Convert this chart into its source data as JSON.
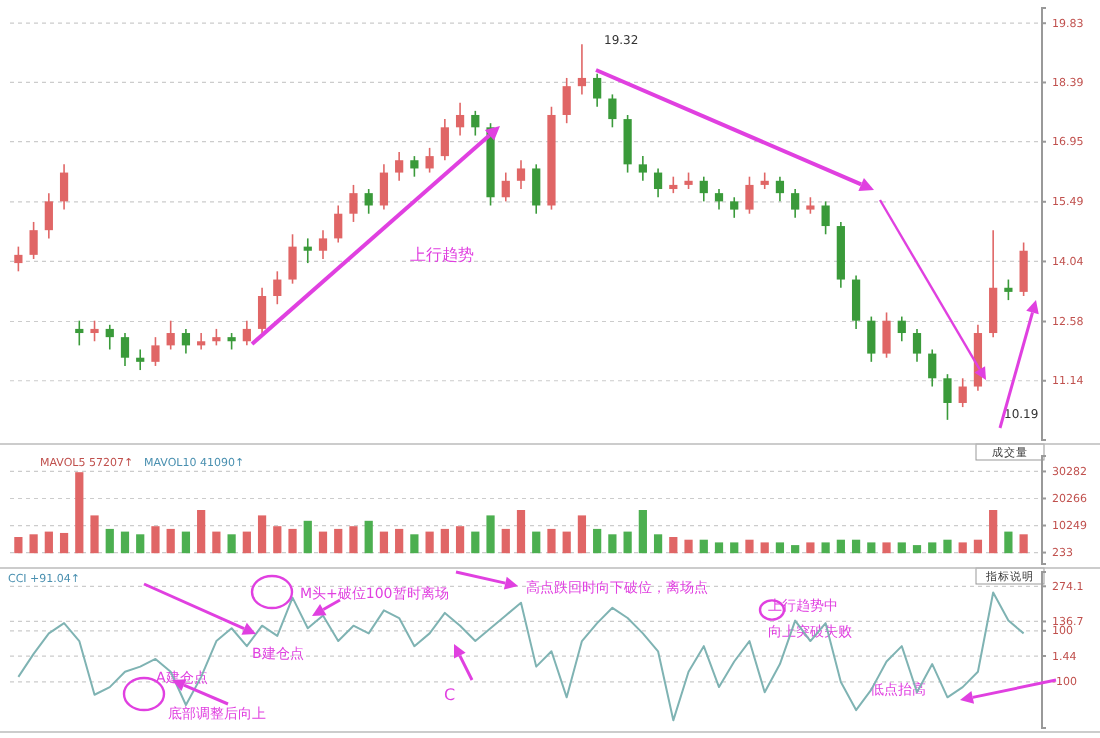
{
  "chart_data": [
    {
      "type": "candlestick",
      "categories": [
        null,
        null,
        null,
        null,
        null,
        null,
        null,
        null,
        null,
        null,
        null,
        null,
        null,
        null,
        null,
        null,
        null,
        null,
        null,
        null,
        null,
        null,
        null,
        null,
        null,
        null,
        null,
        null,
        null,
        null,
        null,
        null,
        null,
        null,
        null,
        null,
        null,
        null,
        null,
        null,
        null,
        null,
        null,
        null,
        null,
        null,
        null,
        null,
        null,
        null,
        null,
        null,
        null,
        null,
        null,
        null,
        null,
        null,
        null,
        null,
        null,
        null,
        null,
        null,
        null,
        null,
        null
      ],
      "ohlc": [
        [
          14.0,
          14.4,
          13.8,
          14.2
        ],
        [
          14.2,
          15.0,
          14.1,
          14.8
        ],
        [
          14.8,
          15.7,
          14.6,
          15.5
        ],
        [
          15.5,
          16.4,
          15.3,
          16.2
        ],
        [
          12.4,
          12.6,
          12.0,
          12.3
        ],
        [
          12.3,
          12.6,
          12.1,
          12.4
        ],
        [
          12.4,
          12.5,
          11.9,
          12.2
        ],
        [
          12.2,
          12.3,
          11.5,
          11.7
        ],
        [
          11.7,
          11.9,
          11.4,
          11.6
        ],
        [
          11.6,
          12.2,
          11.5,
          12.0
        ],
        [
          12.0,
          12.6,
          11.9,
          12.3
        ],
        [
          12.3,
          12.4,
          11.8,
          12.0
        ],
        [
          12.0,
          12.3,
          11.9,
          12.1
        ],
        [
          12.1,
          12.4,
          12.0,
          12.2
        ],
        [
          12.2,
          12.3,
          11.9,
          12.1
        ],
        [
          12.1,
          12.6,
          12.0,
          12.4
        ],
        [
          12.4,
          13.4,
          12.3,
          13.2
        ],
        [
          13.2,
          13.8,
          13.0,
          13.6
        ],
        [
          13.6,
          14.7,
          13.5,
          14.4
        ],
        [
          14.4,
          14.6,
          14.0,
          14.3
        ],
        [
          14.3,
          14.8,
          14.1,
          14.6
        ],
        [
          14.6,
          15.4,
          14.5,
          15.2
        ],
        [
          15.2,
          15.9,
          15.0,
          15.7
        ],
        [
          15.7,
          15.8,
          15.2,
          15.4
        ],
        [
          15.4,
          16.4,
          15.3,
          16.2
        ],
        [
          16.2,
          16.7,
          16.0,
          16.5
        ],
        [
          16.5,
          16.6,
          16.1,
          16.3
        ],
        [
          16.3,
          16.8,
          16.2,
          16.6
        ],
        [
          16.6,
          17.5,
          16.5,
          17.3
        ],
        [
          17.3,
          17.9,
          17.1,
          17.6
        ],
        [
          17.6,
          17.7,
          17.1,
          17.3
        ],
        [
          17.3,
          17.4,
          15.4,
          15.6
        ],
        [
          15.6,
          16.2,
          15.5,
          16.0
        ],
        [
          16.0,
          16.5,
          15.8,
          16.3
        ],
        [
          16.3,
          16.4,
          15.2,
          15.4
        ],
        [
          15.4,
          17.8,
          15.3,
          17.6
        ],
        [
          17.6,
          18.5,
          17.4,
          18.3
        ],
        [
          18.3,
          19.32,
          18.1,
          18.5
        ],
        [
          18.5,
          18.6,
          17.8,
          18.0
        ],
        [
          18.0,
          18.1,
          17.3,
          17.5
        ],
        [
          17.5,
          17.6,
          16.2,
          16.4
        ],
        [
          16.4,
          16.6,
          16.0,
          16.2
        ],
        [
          16.2,
          16.3,
          15.6,
          15.8
        ],
        [
          15.8,
          16.1,
          15.7,
          15.9
        ],
        [
          15.9,
          16.2,
          15.8,
          16.0
        ],
        [
          16.0,
          16.1,
          15.5,
          15.7
        ],
        [
          15.7,
          15.8,
          15.3,
          15.5
        ],
        [
          15.5,
          15.6,
          15.1,
          15.3
        ],
        [
          15.3,
          16.1,
          15.2,
          15.9
        ],
        [
          15.9,
          16.2,
          15.8,
          16.0
        ],
        [
          16.0,
          16.1,
          15.5,
          15.7
        ],
        [
          15.7,
          15.8,
          15.1,
          15.3
        ],
        [
          15.3,
          15.6,
          15.2,
          15.4
        ],
        [
          15.4,
          15.5,
          14.7,
          14.9
        ],
        [
          14.9,
          15.0,
          13.4,
          13.6
        ],
        [
          13.6,
          13.7,
          12.4,
          12.6
        ],
        [
          12.6,
          12.7,
          11.6,
          11.8
        ],
        [
          11.8,
          12.8,
          11.7,
          12.6
        ],
        [
          12.6,
          12.7,
          12.1,
          12.3
        ],
        [
          12.3,
          12.4,
          11.6,
          11.8
        ],
        [
          11.8,
          11.9,
          11.0,
          11.2
        ],
        [
          11.2,
          11.3,
          10.19,
          10.6
        ],
        [
          10.6,
          11.2,
          10.5,
          11.0
        ],
        [
          11.0,
          12.5,
          10.9,
          12.3
        ],
        [
          12.3,
          14.8,
          12.2,
          13.4
        ],
        [
          13.4,
          13.6,
          13.1,
          13.3
        ],
        [
          13.3,
          14.5,
          13.2,
          14.3
        ]
      ],
      "ylim": [
        9.7,
        20.2
      ],
      "yticks": [
        11.14,
        12.58,
        14.04,
        15.49,
        16.95,
        18.39,
        19.83
      ],
      "grid": "y",
      "annotations": [
        "上行趋势",
        "19.32",
        "10.19"
      ]
    },
    {
      "type": "bar",
      "categories": [
        null,
        null,
        null,
        null,
        null,
        null,
        null,
        null,
        null,
        null,
        null,
        null,
        null,
        null,
        null,
        null,
        null,
        null,
        null,
        null,
        null,
        null,
        null,
        null,
        null,
        null,
        null,
        null,
        null,
        null,
        null,
        null,
        null,
        null,
        null,
        null,
        null,
        null,
        null,
        null,
        null,
        null,
        null,
        null,
        null,
        null,
        null,
        null,
        null,
        null,
        null,
        null,
        null,
        null,
        null,
        null,
        null,
        null,
        null,
        null,
        null,
        null,
        null,
        null,
        null,
        null,
        null
      ],
      "values": [
        6000,
        7000,
        8000,
        7500,
        30000,
        14000,
        9000,
        8000,
        7000,
        10000,
        9000,
        8000,
        16000,
        8000,
        7000,
        8000,
        14000,
        10000,
        9000,
        12000,
        8000,
        9000,
        10000,
        12000,
        8000,
        9000,
        7000,
        8000,
        9000,
        10000,
        8000,
        14000,
        9000,
        16000,
        8000,
        9000,
        8000,
        14000,
        9000,
        7000,
        8000,
        16000,
        7000,
        6000,
        5000,
        5000,
        4000,
        4000,
        5000,
        4000,
        4000,
        3000,
        4000,
        4000,
        5000,
        5000,
        4000,
        4000,
        4000,
        3000,
        4000,
        5000,
        4000,
        5000,
        16000,
        8000,
        7000
      ],
      "colors": [
        "#e06666",
        "#e06666",
        "#e06666",
        "#e06666",
        "#e06666",
        "#e06666",
        "#4caf50",
        "#4caf50",
        "#4caf50",
        "#e06666",
        "#e06666",
        "#4caf50",
        "#e06666",
        "#e06666",
        "#4caf50",
        "#e06666",
        "#e06666",
        "#e06666",
        "#e06666",
        "#4caf50",
        "#e06666",
        "#e06666",
        "#e06666",
        "#4caf50",
        "#e06666",
        "#e06666",
        "#4caf50",
        "#e06666",
        "#e06666",
        "#e06666",
        "#4caf50",
        "#4caf50",
        "#e06666",
        "#e06666",
        "#4caf50",
        "#e06666",
        "#e06666",
        "#e06666",
        "#4caf50",
        "#4caf50",
        "#4caf50",
        "#4caf50",
        "#4caf50",
        "#e06666",
        "#e06666",
        "#4caf50",
        "#4caf50",
        "#4caf50",
        "#e06666",
        "#e06666",
        "#4caf50",
        "#4caf50",
        "#e06666",
        "#4caf50",
        "#4caf50",
        "#4caf50",
        "#4caf50",
        "#e06666",
        "#4caf50",
        "#4caf50",
        "#4caf50",
        "#4caf50",
        "#e06666",
        "#e06666",
        "#e06666",
        "#4caf50",
        "#e06666"
      ],
      "ylim": [
        -4000,
        36000
      ],
      "yticks": [
        233,
        10249,
        20266,
        30282
      ],
      "grid": "y",
      "annotations": [
        "MAVOL5 57207↑",
        "MAVOL10 41090↑",
        "成交量"
      ]
    },
    {
      "type": "line",
      "categories": [
        null,
        null,
        null,
        null,
        null,
        null,
        null,
        null,
        null,
        null,
        null,
        null,
        null,
        null,
        null,
        null,
        null,
        null,
        null,
        null,
        null,
        null,
        null,
        null,
        null,
        null,
        null,
        null,
        null,
        null,
        null,
        null,
        null,
        null,
        null,
        null,
        null,
        null,
        null,
        null,
        null,
        null,
        null,
        null,
        null,
        null,
        null,
        null,
        null,
        null,
        null,
        null,
        null,
        null,
        null,
        null,
        null,
        null,
        null,
        null,
        null,
        null,
        null,
        null,
        null,
        null,
        null
      ],
      "series": [
        {
          "color": "#7fb3b3",
          "values": [
            -80,
            10,
            90,
            130,
            60,
            -150,
            -120,
            -60,
            -40,
            -10,
            -60,
            -190,
            -80,
            60,
            110,
            40,
            120,
            80,
            230,
            110,
            160,
            60,
            120,
            90,
            180,
            150,
            40,
            90,
            170,
            120,
            60,
            110,
            160,
            210,
            -40,
            20,
            -160,
            60,
            130,
            190,
            150,
            90,
            20,
            -250,
            -60,
            40,
            -120,
            -20,
            60,
            -140,
            -30,
            140,
            60,
            130,
            -100,
            -210,
            -130,
            -20,
            40,
            -140,
            -30,
            -160,
            -120,
            -60,
            250,
            140,
            90
          ]
        }
      ],
      "ylim": [
        -280,
        330
      ],
      "yticks": [
        -100,
        {
          "value": 1.44,
          "label": "1.44"
        },
        100,
        {
          "value": 136.7,
          "label": "136.7"
        },
        {
          "value": 274.1,
          "label": "274.1"
        }
      ],
      "grid": "y",
      "annotations": [
        "CCI +91.04↑",
        "A建仓点",
        "底部调整后向上",
        "B建仓点",
        "M头+破位100暂时离场",
        "C",
        "高点跌回时向下破位，离场点",
        "上行趋势中",
        "向上突破失败",
        "低点抬高",
        "指标说明"
      ]
    }
  ]
}
